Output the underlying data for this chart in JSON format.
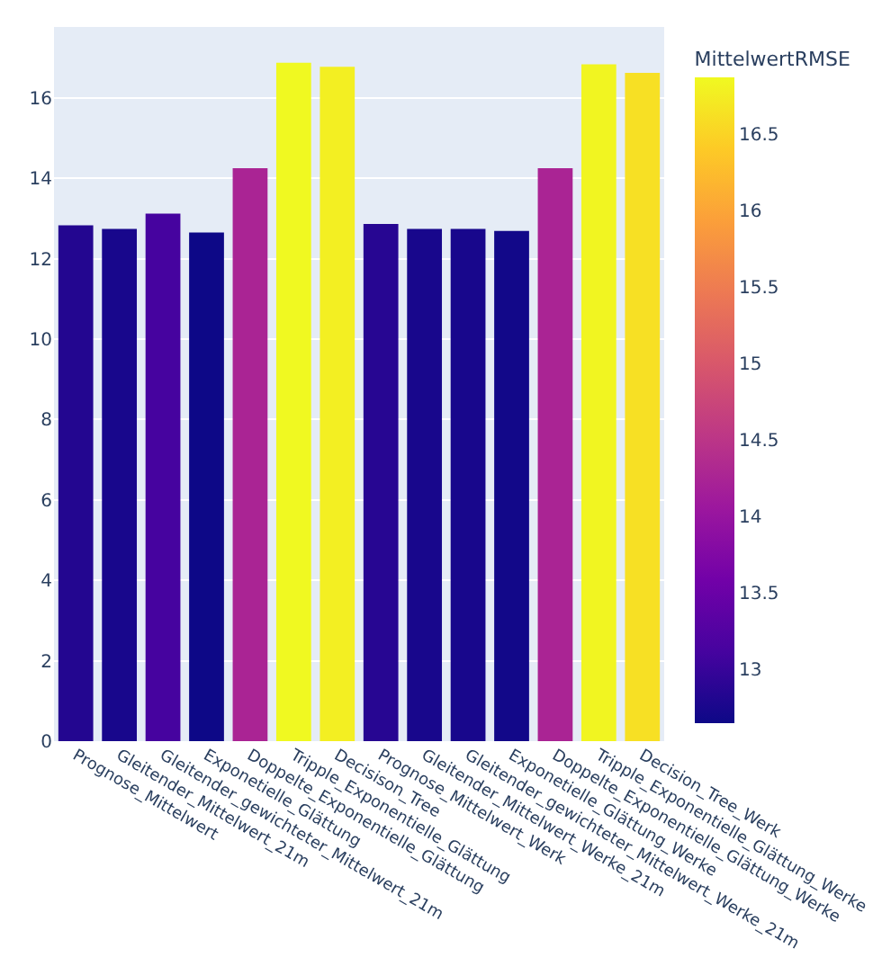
{
  "chart_data": {
    "type": "bar",
    "categories": [
      "Prognose_Mittelwert",
      "Gleitender_Mittelwert_21m",
      "Gleitender_gewichteter_Mittelwert_21m",
      "Exponetielle_Glättung",
      "Doppelte_Exponentielle_Glättung",
      "Tripple_Exponentielle_Glättung",
      "Decisison_Tree",
      "Prognose_Mittelwert_Werk",
      "Gleitender_Mittelwert_Werke_21m",
      "Gleitender_gewichteter_Mittelwert_Werke_21m",
      "Exponetielle_Glättung_Werke",
      "Doppelte_Exponentielle_Glättung_Werke",
      "Tripple_Exponentielle_Glättung_Werke",
      "Decision_Tree_Werk"
    ],
    "values": [
      12.83,
      12.74,
      13.12,
      12.65,
      14.25,
      16.87,
      16.77,
      12.86,
      12.74,
      12.74,
      12.69,
      14.25,
      16.83,
      16.62
    ],
    "ylim": [
      0,
      17.76
    ],
    "yticks": [
      0,
      2,
      4,
      6,
      8,
      10,
      12,
      14,
      16
    ],
    "clabel": "MittelwertRMSE",
    "clim": [
      12.65,
      16.87
    ],
    "cticks": [
      13,
      13.5,
      14,
      14.5,
      15,
      15.5,
      16,
      16.5
    ],
    "grid": "y",
    "legend": false
  }
}
